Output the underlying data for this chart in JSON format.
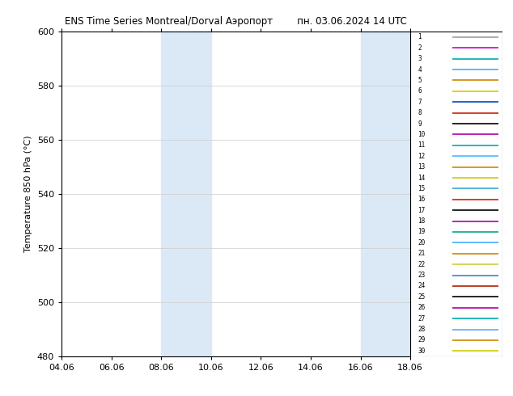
{
  "title_left": "ENS Time Series Montreal/Dorval Аэропорт",
  "title_right": "пн. 03.06.2024 14 UTC",
  "ylabel": "Temperature 850 hPa (°C)",
  "ylim": [
    480,
    600
  ],
  "yticks": [
    480,
    500,
    520,
    540,
    560,
    580,
    600
  ],
  "xtick_positions": [
    4,
    6,
    8,
    10,
    12,
    14,
    16,
    18
  ],
  "xtick_labels": [
    "04.06",
    "06.06",
    "08.06",
    "10.06",
    "12.06",
    "14.06",
    "16.06",
    "18.06"
  ],
  "xlim": [
    4,
    18
  ],
  "shaded_bands": [
    {
      "xmin": 8.0,
      "xmax": 10.0
    },
    {
      "xmin": 16.0,
      "xmax": 18.0
    }
  ],
  "shade_color": "#dbe9f7",
  "background_color": "#ffffff",
  "n_members": 30,
  "member_colors": [
    "#a0a0a0",
    "#cc00cc",
    "#00aaaa",
    "#44aaff",
    "#cc8800",
    "#cccc00",
    "#0044cc",
    "#cc2200",
    "#000000",
    "#aa00aa",
    "#00aaaa",
    "#44bbff",
    "#cc8800",
    "#cccc00",
    "#33aacc",
    "#cc2200",
    "#000000",
    "#aa00aa",
    "#00aa88",
    "#44aaff",
    "#cc8800",
    "#cccc44",
    "#3388cc",
    "#aa2200",
    "#000000",
    "#aa00aa",
    "#00aaaa",
    "#55aaff",
    "#cc8800",
    "#cccc00"
  ]
}
